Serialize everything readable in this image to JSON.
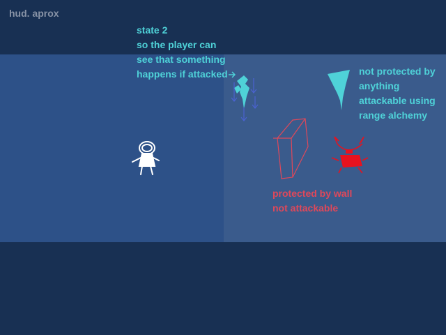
{
  "hud": {
    "label": "hud. aprox"
  },
  "notes": {
    "state": {
      "lines": [
        "state 2",
        "so the player can",
        "see that something",
        "happens if attacked"
      ]
    },
    "unprotected": {
      "lines": [
        "not protected by",
        "anything",
        "attackable using",
        "range alchemy"
      ]
    },
    "protected": {
      "lines": [
        "protected by wall",
        "not attackable"
      ]
    }
  },
  "colors": {
    "hud_background": "#183053",
    "zone_left": "#2d5188",
    "zone_right": "#3a5b8c",
    "note_cyan": "#4fd2d8",
    "note_red": "#e0485a",
    "enemy_red": "#e8121e",
    "player_white": "#ffffff"
  },
  "sprites": {
    "player": "stick-figure-player",
    "hit_enemy": "cyan-crystal-enemy-hit",
    "open_enemy": "cyan-crystal-enemy",
    "wall": "red-wall-outline",
    "protected_enemy": "red-crab-enemy"
  }
}
